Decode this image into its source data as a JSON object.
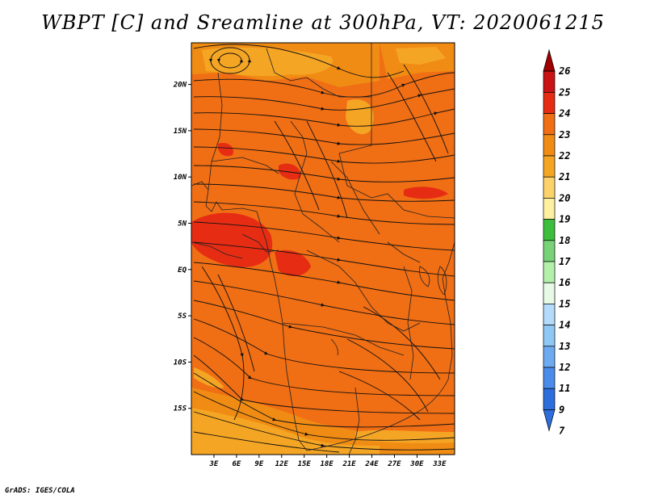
{
  "title": "WBPT [C] and Sreamline at 300hPa, VT: 2020061215",
  "credit": "GrADS: IGES/COLA",
  "map": {
    "lon_range": [
      0,
      35
    ],
    "lat_range": [
      -20,
      24.5
    ],
    "x_tick_labels": [
      "3E",
      "6E",
      "9E",
      "12E",
      "15E",
      "18E",
      "21E",
      "24E",
      "27E",
      "30E",
      "33E"
    ],
    "x_tick_values": [
      3,
      6,
      9,
      12,
      15,
      18,
      21,
      24,
      27,
      30,
      33
    ],
    "y_tick_labels": [
      "20N",
      "15N",
      "10N",
      "5N",
      "EQ",
      "5S",
      "10S",
      "15S"
    ],
    "y_tick_values": [
      20,
      15,
      10,
      5,
      0,
      -5,
      -10,
      -15
    ],
    "background_color": "#f06e14"
  },
  "colorbar": {
    "labels": [
      "26",
      "25",
      "24",
      "23",
      "22",
      "21",
      "20",
      "19",
      "18",
      "17",
      "16",
      "15",
      "14",
      "13",
      "12",
      "11",
      "9",
      "7"
    ],
    "colors": [
      "#a00000",
      "#c81414",
      "#e62d14",
      "#f06e14",
      "#f08c14",
      "#f5a524",
      "#fcd26a",
      "#fdf0a0",
      "#3cbe3c",
      "#78d278",
      "#b4f0aa",
      "#e6fae6",
      "#b4dcfa",
      "#90c8f5",
      "#6eaaf0",
      "#4b8ceb",
      "#2d6edc",
      "#2d6edc"
    ]
  }
}
